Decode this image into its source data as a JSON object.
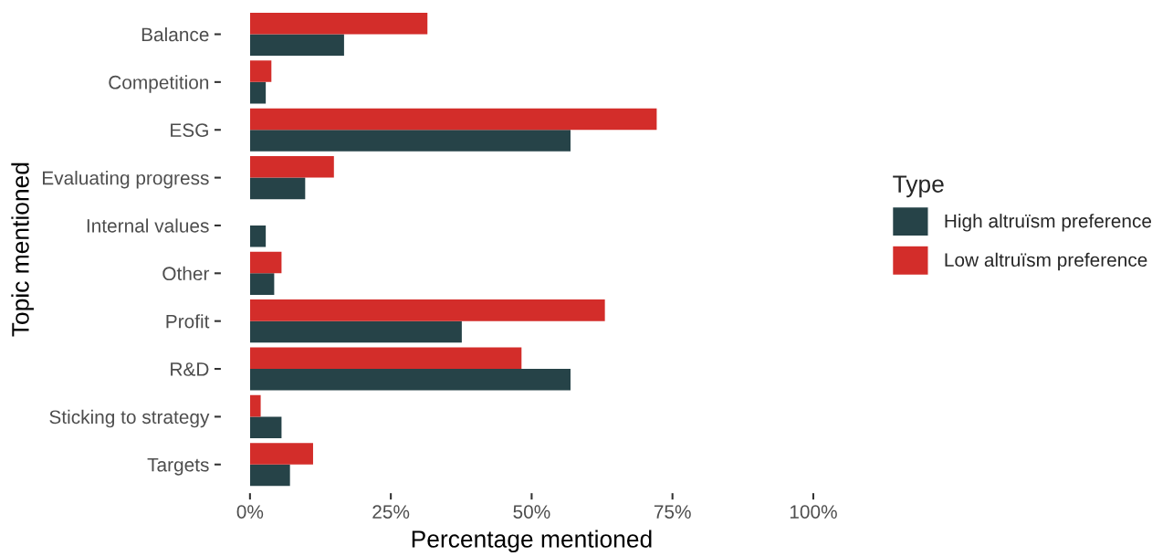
{
  "chart_data": {
    "type": "bar",
    "orientation": "horizontal",
    "xlabel": "Percentage mentioned",
    "ylabel": "Topic mentioned",
    "legend_title": "Type",
    "legend": "right",
    "grid": false,
    "categories": [
      "Balance",
      "Competition",
      "ESG",
      "Evaluating progress",
      "Internal values",
      "Other",
      "Profit",
      "R&D",
      "Sticking to strategy",
      "Targets"
    ],
    "series": [
      {
        "name": "High altruïsm preference",
        "color": "#264348",
        "values": [
          16.7,
          2.8,
          56.9,
          9.8,
          2.8,
          4.3,
          37.6,
          56.9,
          5.6,
          7.1
        ]
      },
      {
        "name": "Low altruïsm preference",
        "color": "#d32d2a",
        "values": [
          31.5,
          3.8,
          72.2,
          14.9,
          0,
          5.6,
          63.0,
          48.2,
          1.9,
          11.2
        ]
      }
    ],
    "xlim": [
      0,
      100
    ],
    "xticks": [
      {
        "value": 0,
        "label": "0%"
      },
      {
        "value": 25,
        "label": "25%"
      },
      {
        "value": 50,
        "label": "50%"
      },
      {
        "value": 75,
        "label": "75%"
      },
      {
        "value": 100,
        "label": "100%"
      }
    ]
  }
}
